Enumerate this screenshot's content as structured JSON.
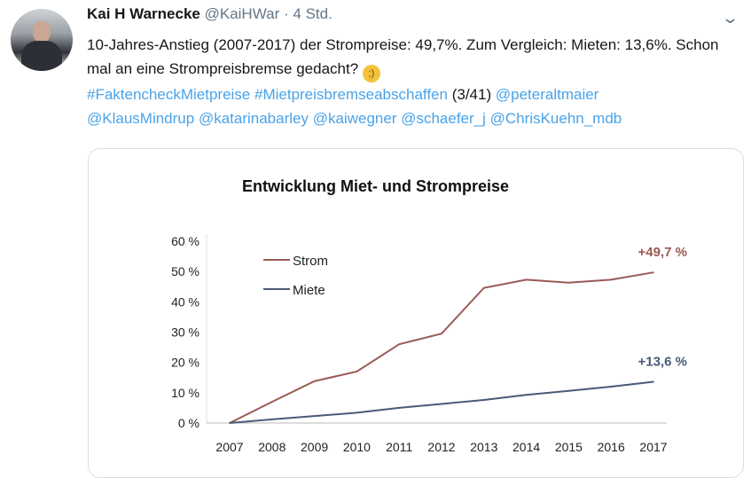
{
  "tweet": {
    "author_name": "Kai H Warnecke",
    "handle": "@KaiHWar",
    "separator": "·",
    "time": "4 Std.",
    "text_line1": "10-Jahres-Anstieg (2007-2017) der Strompreise: 49,7%. Zum Vergleich: Mieten: 13,6%. Schon mal an eine Strompreisbremse gedacht?",
    "emoji": "winking-face",
    "hashtags": [
      "#FaktencheckMietpreise",
      "#Mietpreisbremseabschaffen"
    ],
    "counter": "(3/41)",
    "mentions": [
      "@peteraltmaier",
      "@KlausMindrup",
      "@katarinabarley",
      "@kaiwegner",
      "@schaefer_j",
      "@ChrisKuehn_mdb"
    ]
  },
  "chart_data": {
    "type": "line",
    "title": "Entwicklung Miet- und Strompreise",
    "x": [
      "2007",
      "2008",
      "2009",
      "2010",
      "2011",
      "2012",
      "2013",
      "2014",
      "2015",
      "2016",
      "2017"
    ],
    "series": [
      {
        "name": "Strom",
        "color": "#9a5a55",
        "values": [
          0,
          7,
          13.8,
          17,
          26,
          29.5,
          44.6,
          47.3,
          46.3,
          47.3,
          49.7
        ],
        "end_label": "+49,7 %"
      },
      {
        "name": "Miete",
        "color": "#4a5a78",
        "values": [
          0,
          1.2,
          2.3,
          3.4,
          5.0,
          6.3,
          7.6,
          9.3,
          10.6,
          12,
          13.6
        ],
        "end_label": "+13,6 %"
      }
    ],
    "yticks": [
      "0 %",
      "10 %",
      "20 %",
      "30 %",
      "40 %",
      "50 %",
      "60 %"
    ],
    "ylim": [
      0,
      60
    ],
    "xlabel": "",
    "ylabel": "",
    "legend": "top-left",
    "grid": false
  }
}
